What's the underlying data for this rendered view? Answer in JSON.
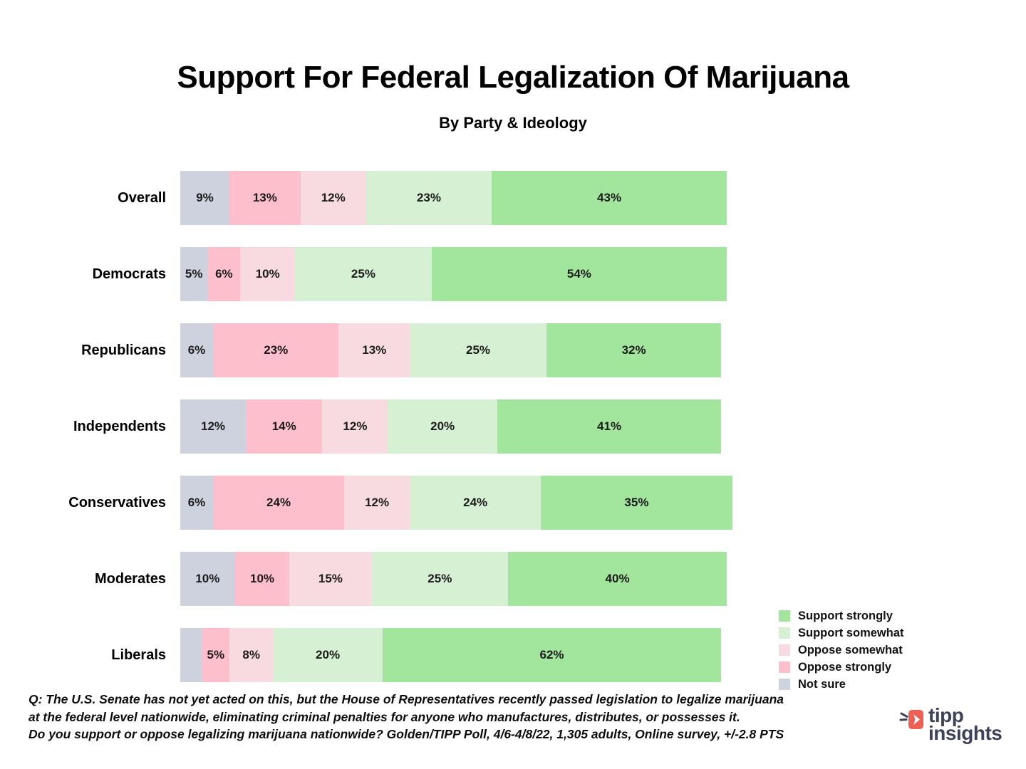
{
  "header": {
    "title": "Support For Federal Legalization Of Marijuana",
    "subtitle": "By Party & Ideology"
  },
  "chart_data": {
    "type": "bar",
    "orientation": "horizontal",
    "stacked": true,
    "unit": "%",
    "categories": [
      "Overall",
      "Democrats",
      "Republicans",
      "Independents",
      "Conservatives",
      "Moderates",
      "Liberals"
    ],
    "series": [
      {
        "name": "Not sure",
        "color": "#ced2de",
        "values": [
          9,
          5,
          6,
          12,
          6,
          10,
          4
        ],
        "labels": [
          "9%",
          "5%",
          "6%",
          "12%",
          "6%",
          "10%",
          ""
        ]
      },
      {
        "name": "Oppose strongly",
        "color": "#febfcc",
        "values": [
          13,
          6,
          23,
          14,
          24,
          10,
          5
        ],
        "labels": [
          "13%",
          "6%",
          "23%",
          "14%",
          "24%",
          "10%",
          "5%"
        ]
      },
      {
        "name": "Oppose somewhat",
        "color": "#f8dbe1",
        "values": [
          12,
          10,
          13,
          12,
          12,
          15,
          8
        ],
        "labels": [
          "12%",
          "10%",
          "13%",
          "12%",
          "12%",
          "15%",
          "8%"
        ]
      },
      {
        "name": "Support somewhat",
        "color": "#d5f0d2",
        "values": [
          23,
          25,
          25,
          20,
          24,
          25,
          20
        ],
        "labels": [
          "23%",
          "25%",
          "25%",
          "20%",
          "24%",
          "25%",
          "20%"
        ]
      },
      {
        "name": "Support strongly",
        "color": "#a2e59c",
        "values": [
          43,
          54,
          32,
          41,
          35,
          40,
          62
        ],
        "labels": [
          "43%",
          "54%",
          "32%",
          "41%",
          "35%",
          "40%",
          "62%"
        ]
      }
    ],
    "legend": {
      "position": "bottom-right",
      "entries": [
        "Support strongly",
        "Support somewhat",
        "Oppose somewhat",
        "Oppose strongly",
        "Not sure"
      ]
    }
  },
  "footnote": {
    "lines": [
      "Q: The U.S. Senate has not yet acted on this, but the House of Representatives recently passed legislation to legalize marijuana",
      "at the federal level nationwide, eliminating criminal penalties for anyone who manufactures, distributes, or possesses it.",
      "Do you support or oppose legalizing marijuana nationwide? Golden/TIPP Poll, 4/6-4/8/22, 1,305 adults, Online survey, +/-2.8 PTS"
    ]
  },
  "logo": {
    "wordmark_line1": "tipp",
    "wordmark_line2": "insights",
    "accent_color": "#ee6054",
    "text_color": "#3d4159"
  }
}
